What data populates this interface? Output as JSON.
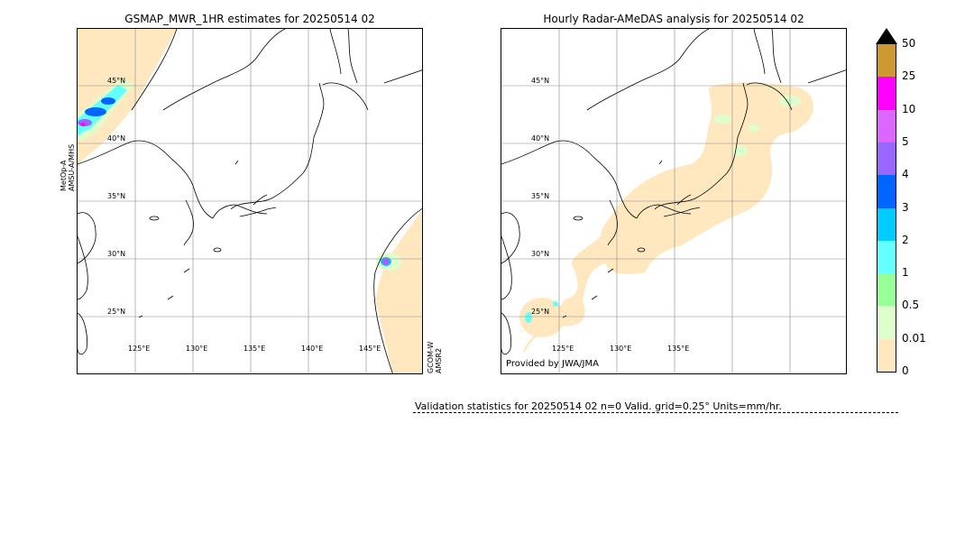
{
  "left_map": {
    "title": "GSMAP_MWR_1HR estimates for 20250514 02",
    "lat_labels": [
      "45°N",
      "40°N",
      "35°N",
      "30°N",
      "25°N"
    ],
    "lon_labels": [
      "125°E",
      "130°E",
      "135°E",
      "140°E",
      "145°E"
    ],
    "side_label_left_1": "MetOp-A",
    "side_label_left_2": "AMSU-A/MHS",
    "side_label_right_1": "GCOM-W",
    "side_label_right_2": "AMSR2"
  },
  "right_map": {
    "title": "Hourly Radar-AMeDAS analysis for 20250514 02",
    "lat_labels": [
      "45°N",
      "40°N",
      "35°N",
      "30°N",
      "25°N"
    ],
    "lon_labels": [
      "125°E",
      "130°E",
      "135°E"
    ],
    "credit": "Provided by JWA/JMA"
  },
  "colorbar": {
    "labels": [
      "50",
      "25",
      "10",
      "5",
      "4",
      "3",
      "2",
      "1",
      "0.5",
      "0.01",
      "0"
    ],
    "colors": [
      "#cc9933",
      "#ff00ff",
      "#dd66ff",
      "#9966ff",
      "#0066ff",
      "#00ccff",
      "#66ffff",
      "#99ff99",
      "#ddffcc",
      "#ffe8c0"
    ],
    "extend_color": "#000000"
  },
  "validation": {
    "text": "Validation statistics for 20250514 02  n=0 Valid. grid=0.25° Units=mm/hr."
  }
}
